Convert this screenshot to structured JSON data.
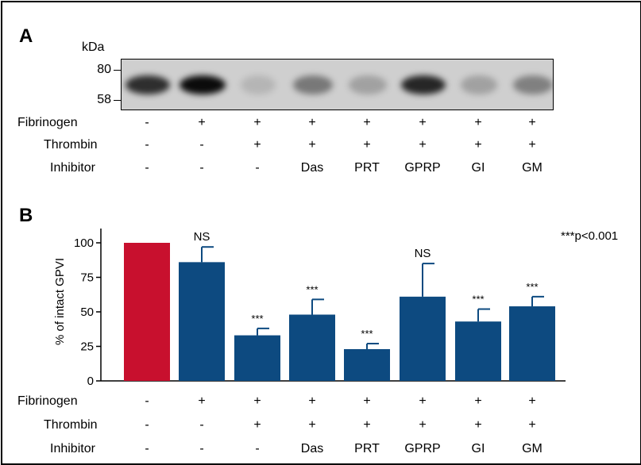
{
  "panel_a": {
    "label": "A",
    "kda_label": "kDa",
    "markers": [
      "80",
      "58"
    ],
    "band_intensity": [
      0.78,
      0.95,
      0.12,
      0.42,
      0.22,
      0.82,
      0.22,
      0.38
    ]
  },
  "panel_b": {
    "label": "B",
    "significance_note": "***p<0.001"
  },
  "conditions": {
    "row_labels": [
      "Fibrinogen",
      "Thrombin",
      "Inhibitor"
    ],
    "fibrinogen": [
      "-",
      "+",
      "+",
      "+",
      "+",
      "+",
      "+",
      "+"
    ],
    "thrombin": [
      "-",
      "-",
      "+",
      "+",
      "+",
      "+",
      "+",
      "+"
    ],
    "inhibitor": [
      "-",
      "-",
      "-",
      "Das",
      "PRT",
      "GPRP",
      "GI",
      "GM"
    ]
  },
  "colors": {
    "control_bar": "#c8102e",
    "bar": "#0d4a80"
  },
  "chart_data": {
    "type": "bar",
    "ylabel": "% of intact GPVI",
    "ylim": [
      0,
      110
    ],
    "yticks": [
      0,
      25,
      50,
      75,
      100
    ],
    "grid": false,
    "values": [
      100,
      86,
      33,
      48,
      23,
      61,
      43,
      54
    ],
    "errors": [
      0,
      11,
      5,
      11,
      4,
      24,
      9,
      7
    ],
    "annotations": [
      "",
      "NS",
      "***",
      "***",
      "***",
      "NS",
      "***",
      "***"
    ]
  }
}
